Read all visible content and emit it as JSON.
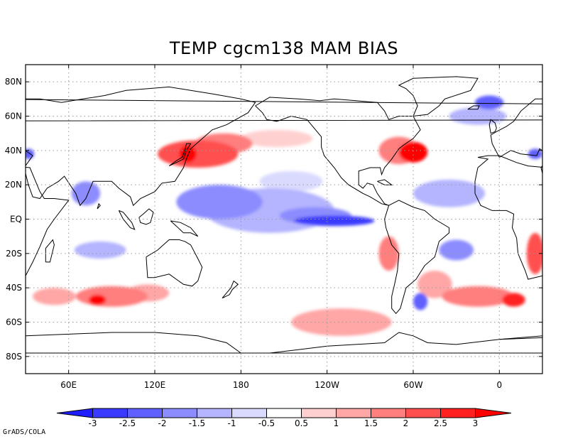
{
  "title": "TEMP cgcm138 MAM  BIAS",
  "credit": "GrADS/COLA",
  "chart_data": {
    "type": "heatmap",
    "title": "TEMP cgcm138 MAM  BIAS",
    "variable": "TEMP",
    "model": "cgcm138",
    "season": "MAM",
    "field": "BIAS",
    "lon_range": [
      30,
      390
    ],
    "lat_range": [
      -90,
      90
    ],
    "lat_ticks": [
      {
        "value": 80,
        "label": "80N"
      },
      {
        "value": 60,
        "label": "60N"
      },
      {
        "value": 40,
        "label": "40N"
      },
      {
        "value": 20,
        "label": "20N"
      },
      {
        "value": 0,
        "label": "EQ"
      },
      {
        "value": -20,
        "label": "20S"
      },
      {
        "value": -40,
        "label": "40S"
      },
      {
        "value": -60,
        "label": "60S"
      },
      {
        "value": -80,
        "label": "80S"
      }
    ],
    "lon_ticks": [
      {
        "value": 60,
        "label": "60E"
      },
      {
        "value": 120,
        "label": "120E"
      },
      {
        "value": 180,
        "label": "180"
      },
      {
        "value": 240,
        "label": "120W"
      },
      {
        "value": 300,
        "label": "60W"
      },
      {
        "value": 360,
        "label": "0"
      }
    ],
    "grid": true,
    "colorbar": {
      "levels": [
        "-3",
        "-2.5",
        "-2",
        "-1.5",
        "-1",
        "-0.5",
        "0.5",
        "1",
        "1.5",
        "2",
        "2.5",
        "3"
      ],
      "colors": [
        "#1e1eff",
        "#3a3aff",
        "#6060ff",
        "#8c8cff",
        "#b4b4ff",
        "#dadaff",
        "#ffffff",
        "#ffd0d0",
        "#ffa6a6",
        "#ff7e7e",
        "#ff5050",
        "#ff2020",
        "#ff0000"
      ]
    },
    "bias_regions": [
      {
        "lon": 150,
        "lat": 38,
        "rlon": 28,
        "rlat": 8,
        "value": 2.0
      },
      {
        "lon": 143,
        "lat": 38,
        "rlon": 6,
        "rlat": 5,
        "value": 3.0
      },
      {
        "lon": 168,
        "lat": 44,
        "rlon": 20,
        "rlat": 6,
        "value": 1.5
      },
      {
        "lon": 205,
        "lat": 47,
        "rlon": 25,
        "rlat": 5,
        "value": 0.8
      },
      {
        "lon": 300,
        "lat": 39,
        "rlon": 10,
        "rlat": 6,
        "value": 3.0
      },
      {
        "lon": 290,
        "lat": 40,
        "rlon": 14,
        "rlat": 8,
        "value": 1.5
      },
      {
        "lon": 200,
        "lat": 5,
        "rlon": 45,
        "rlat": 13,
        "value": -1.2
      },
      {
        "lon": 165,
        "lat": 10,
        "rlon": 30,
        "rlat": 10,
        "value": -2.0
      },
      {
        "lon": 245,
        "lat": -1,
        "rlon": 28,
        "rlat": 3,
        "value": -3.0
      },
      {
        "lon": 232,
        "lat": 2,
        "rlon": 25,
        "rlat": 5,
        "value": -2.0
      },
      {
        "lon": 215,
        "lat": 22,
        "rlon": 22,
        "rlat": 6,
        "value": -0.8
      },
      {
        "lon": 325,
        "lat": 15,
        "rlon": 25,
        "rlat": 8,
        "value": -1.5
      },
      {
        "lon": 72,
        "lat": 15,
        "rlon": 10,
        "rlat": 7,
        "value": -2.0
      },
      {
        "lon": 345,
        "lat": 60,
        "rlon": 20,
        "rlat": 5,
        "value": -1.5
      },
      {
        "lon": 353,
        "lat": 68,
        "rlon": 10,
        "rlat": 4,
        "value": -2.5
      },
      {
        "lon": 385,
        "lat": 38,
        "rlon": 5,
        "rlat": 3,
        "value": -2.5
      },
      {
        "lon": 32,
        "lat": 38,
        "rlon": 4,
        "rlat": 3,
        "value": -2.5
      },
      {
        "lon": 82,
        "lat": -18,
        "rlon": 18,
        "rlat": 5,
        "value": -1.2
      },
      {
        "lon": 330,
        "lat": -18,
        "rlon": 12,
        "rlat": 6,
        "value": -1.8
      },
      {
        "lon": 305,
        "lat": -48,
        "rlon": 5,
        "rlat": 5,
        "value": -2.5
      },
      {
        "lon": 90,
        "lat": -45,
        "rlon": 25,
        "rlat": 6,
        "value": 1.5
      },
      {
        "lon": 80,
        "lat": -47,
        "rlon": 6,
        "rlat": 3,
        "value": 3.0
      },
      {
        "lon": 115,
        "lat": -43,
        "rlon": 15,
        "rlat": 5,
        "value": 1.0
      },
      {
        "lon": 50,
        "lat": -45,
        "rlon": 15,
        "rlat": 5,
        "value": 1.2
      },
      {
        "lon": 250,
        "lat": -60,
        "rlon": 35,
        "rlat": 8,
        "value": 1.0
      },
      {
        "lon": 283,
        "lat": -20,
        "rlon": 7,
        "rlat": 10,
        "value": 1.8
      },
      {
        "lon": 385,
        "lat": -20,
        "rlon": 6,
        "rlat": 12,
        "value": 2.0
      },
      {
        "lon": 345,
        "lat": -45,
        "rlon": 25,
        "rlat": 6,
        "value": 1.5
      },
      {
        "lon": 370,
        "lat": -47,
        "rlon": 8,
        "rlat": 4,
        "value": 2.8
      },
      {
        "lon": 315,
        "lat": -38,
        "rlon": 12,
        "rlat": 8,
        "value": 1.0
      }
    ]
  }
}
